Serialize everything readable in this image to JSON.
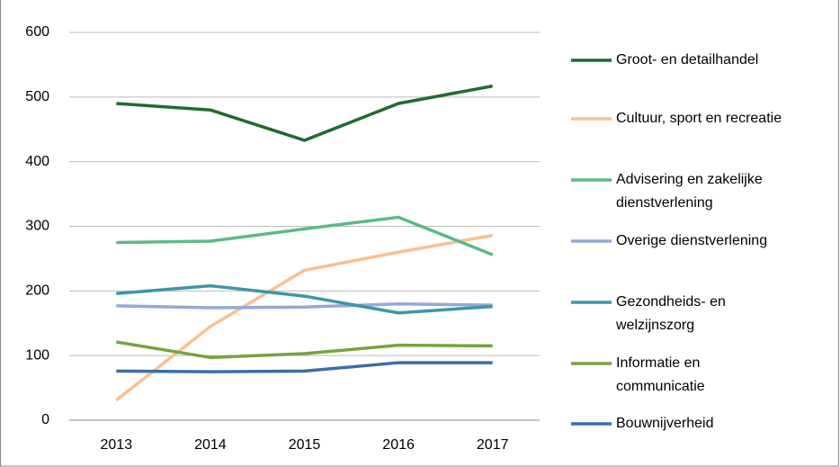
{
  "chart_data": {
    "type": "line",
    "x": [
      2013,
      2014,
      2015,
      2016,
      2017
    ],
    "series": [
      {
        "name": "Groot- en detailhandel",
        "color": "#1e6b30",
        "values": [
          490,
          480,
          433,
          490,
          517
        ]
      },
      {
        "name": "Cultuur, sport en recreatie",
        "color": "#f9c08f",
        "values": [
          31,
          145,
          232,
          260,
          286
        ]
      },
      {
        "name": "Advisering en zakelijke dienstverlening",
        "color": "#5bb98a",
        "values": [
          275,
          277,
          296,
          314,
          256
        ]
      },
      {
        "name": "Overige dienstverlening",
        "color": "#94a9d6",
        "values": [
          177,
          174,
          175,
          180,
          178
        ]
      },
      {
        "name": "Gezondheids- en welzijnszorg",
        "color": "#3b97a8",
        "values": [
          196,
          208,
          192,
          166,
          176
        ]
      },
      {
        "name": "Informatie en communicatie",
        "color": "#77a33e",
        "values": [
          121,
          97,
          103,
          116,
          115
        ]
      },
      {
        "name": "Bouwnijverheid",
        "color": "#3a6ea5",
        "values": [
          76,
          75,
          76,
          89,
          89
        ]
      }
    ],
    "xlim": [
      2012.5,
      2017.5
    ],
    "ylim": [
      0,
      600
    ],
    "yticks": [
      0,
      100,
      200,
      300,
      400,
      500,
      600
    ],
    "grid": true,
    "legend": "right"
  }
}
